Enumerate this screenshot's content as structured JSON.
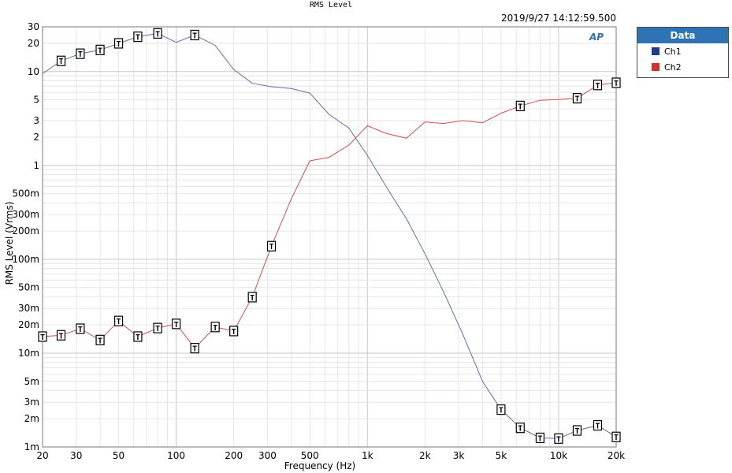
{
  "window": {
    "title": "RMS Level",
    "timestamp": "2019/9/27 14:12:59.500"
  },
  "legend": {
    "header": "Data",
    "items": [
      {
        "label": "Ch1",
        "color": "#1f3c88"
      },
      {
        "label": "Ch2",
        "color": "#d03030"
      }
    ]
  },
  "logo": {
    "text": "AP",
    "color": "#2e74b5"
  },
  "chart_data": {
    "type": "line",
    "title": "RMS Level",
    "xlabel": "Frequency (Hz)",
    "ylabel": "RMS Level (Vrms)",
    "xscale": "log",
    "yscale": "log",
    "xlim": [
      20,
      20000
    ],
    "ylim": [
      0.001,
      30
    ],
    "grid": true,
    "legend_position": "right",
    "x_ticks": [
      {
        "v": 20,
        "label": "20"
      },
      {
        "v": 30,
        "label": "30"
      },
      {
        "v": 50,
        "label": "50"
      },
      {
        "v": 100,
        "label": "100"
      },
      {
        "v": 200,
        "label": "200"
      },
      {
        "v": 300,
        "label": "300"
      },
      {
        "v": 500,
        "label": "500"
      },
      {
        "v": 1000,
        "label": "1k"
      },
      {
        "v": 2000,
        "label": "2k"
      },
      {
        "v": 3000,
        "label": "3k"
      },
      {
        "v": 5000,
        "label": "5k"
      },
      {
        "v": 10000,
        "label": "10k"
      },
      {
        "v": 20000,
        "label": "20k"
      }
    ],
    "y_ticks": [
      {
        "v": 30,
        "label": "30"
      },
      {
        "v": 20,
        "label": "20"
      },
      {
        "v": 10,
        "label": "10"
      },
      {
        "v": 5,
        "label": "5"
      },
      {
        "v": 3,
        "label": "3"
      },
      {
        "v": 2,
        "label": "2"
      },
      {
        "v": 1,
        "label": "1"
      },
      {
        "v": 0.5,
        "label": "500m"
      },
      {
        "v": 0.3,
        "label": "300m"
      },
      {
        "v": 0.2,
        "label": "200m"
      },
      {
        "v": 0.1,
        "label": "100m"
      },
      {
        "v": 0.05,
        "label": "50m"
      },
      {
        "v": 0.03,
        "label": "30m"
      },
      {
        "v": 0.02,
        "label": "20m"
      },
      {
        "v": 0.01,
        "label": "10m"
      },
      {
        "v": 0.005,
        "label": "5m"
      },
      {
        "v": 0.003,
        "label": "3m"
      },
      {
        "v": 0.002,
        "label": "2m"
      },
      {
        "v": 0.001,
        "label": "1m"
      }
    ],
    "x": [
      20,
      25,
      31.5,
      40,
      50,
      63,
      80,
      100,
      125,
      160,
      200,
      250,
      315,
      400,
      500,
      630,
      800,
      1000,
      1250,
      1600,
      2000,
      2500,
      3150,
      4000,
      5000,
      6300,
      8000,
      10000,
      12500,
      16000,
      20000
    ],
    "series": [
      {
        "name": "Ch1",
        "color": "#5a6fae",
        "values": [
          9.5,
          13.0,
          15.5,
          17.0,
          20.0,
          23.5,
          25.5,
          20.5,
          24.5,
          19.0,
          10.5,
          7.5,
          6.9,
          6.6,
          5.9,
          3.5,
          2.5,
          1.28,
          0.6,
          0.27,
          0.115,
          0.045,
          0.016,
          0.005,
          0.0025,
          0.0016,
          0.00125,
          0.00123,
          0.0015,
          0.0017,
          0.00128
        ],
        "markers": [
          25,
          31.5,
          40,
          50,
          63,
          80,
          125,
          5000,
          6300,
          8000,
          10000,
          12500,
          16000,
          20000
        ]
      },
      {
        "name": "Ch2",
        "color": "#d05050",
        "values": [
          0.015,
          0.0155,
          0.0182,
          0.0138,
          0.022,
          0.015,
          0.0185,
          0.0205,
          0.0113,
          0.019,
          0.0172,
          0.0395,
          0.138,
          0.44,
          1.12,
          1.22,
          1.65,
          2.65,
          2.2,
          1.95,
          2.9,
          2.8,
          3.0,
          2.85,
          3.6,
          4.3,
          4.95,
          5.05,
          5.2,
          7.2,
          7.6
        ],
        "markers": [
          20,
          25,
          31.5,
          40,
          50,
          63,
          80,
          100,
          125,
          160,
          200,
          250,
          315,
          6300,
          12500,
          16000,
          20000
        ]
      }
    ]
  }
}
